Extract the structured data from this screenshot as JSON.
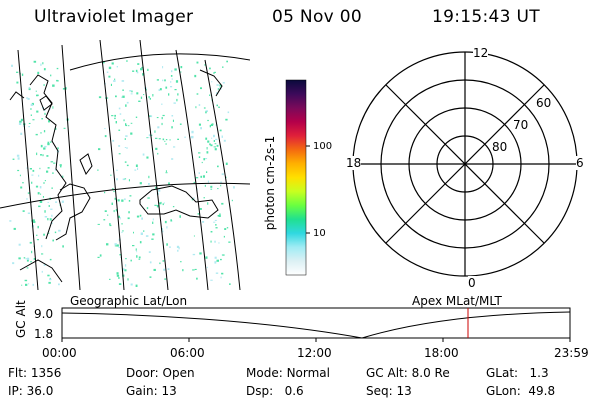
{
  "header": {
    "instrument": "Ultraviolet Imager",
    "date": "05 Nov 00",
    "time": "19:15:43 UT"
  },
  "geo_panel": {
    "label": "Geographic Lat/Lon"
  },
  "colorbar": {
    "unit_label": "photon cm-2s-1",
    "ticks": [
      "100",
      "10"
    ],
    "colors": [
      "#0a0a3c",
      "#3c0a5a",
      "#7a0a5a",
      "#b4004a",
      "#e0203a",
      "#f46a10",
      "#ffb000",
      "#ffe000",
      "#c8ff20",
      "#6aff40",
      "#20e090",
      "#30d8e0",
      "#a0ecf4",
      "#dcf0f4",
      "#ffffff"
    ]
  },
  "polar_panel": {
    "label": "Apex MLat/MLT",
    "mlt_labels": {
      "top": "12",
      "left": "18",
      "right": "6",
      "bottom": "0"
    },
    "lat_labels": [
      "60",
      "70",
      "80"
    ]
  },
  "altitude_strip": {
    "axis_label": "GC Alt",
    "y_ticks": [
      "9.0",
      "1.8"
    ],
    "x_ticks": [
      "00:00",
      "06:00",
      "12:00",
      "18:00",
      "23:59"
    ],
    "current_time_marker_color": "#cc0000"
  },
  "status": {
    "col1": [
      {
        "label": "Flt:",
        "value": "1356"
      },
      {
        "label": "IP:",
        "value": "36.0"
      }
    ],
    "col2": [
      {
        "label": "Door:",
        "value": "Open"
      },
      {
        "label": "Gain:",
        "value": "13"
      }
    ],
    "col3": [
      {
        "label": "Mode:",
        "value": "Normal"
      },
      {
        "label": "Dsp:",
        "value": "0.6"
      }
    ],
    "col4": [
      {
        "label": "GC Alt:",
        "value": "8.0 Re"
      },
      {
        "label": "Seq:",
        "value": "13"
      }
    ],
    "col5": [
      {
        "label": "GLat:",
        "value": "1.3"
      },
      {
        "label": "GLon:",
        "value": "49.8"
      }
    ]
  }
}
